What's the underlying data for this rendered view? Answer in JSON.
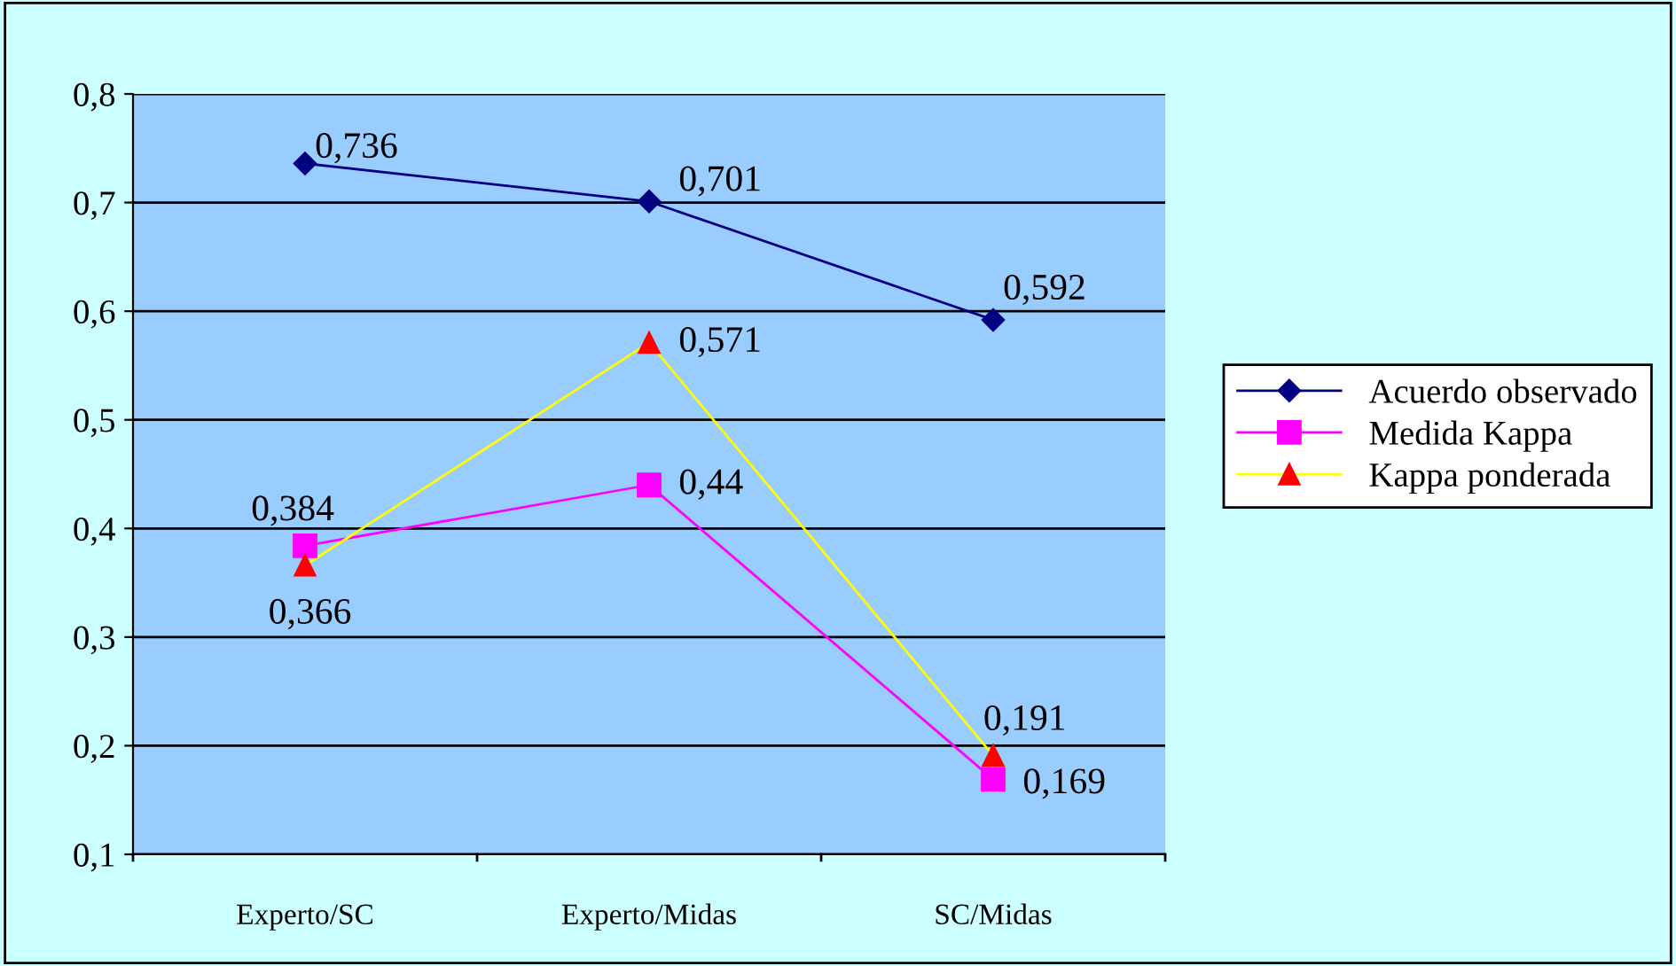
{
  "chart_data": {
    "type": "line",
    "categories": [
      "Experto/SC",
      "Experto/Midas",
      "SC/Midas"
    ],
    "series": [
      {
        "name": "Acuerdo observado",
        "color": "#000080",
        "marker": "diamond",
        "values": [
          0.736,
          0.701,
          0.592
        ]
      },
      {
        "name": "Medida Kappa",
        "color": "#ff00ff",
        "marker": "square",
        "values": [
          0.384,
          0.44,
          0.169
        ]
      },
      {
        "name": "Kappa ponderada",
        "color": "#ffff00",
        "colors": [
          "#ff0000",
          "#ff0000",
          "#ff0000"
        ],
        "marker": "triangle",
        "values": [
          0.366,
          0.571,
          0.191
        ]
      }
    ],
    "value_labels": [
      [
        "0,736",
        "0,701",
        "0,592"
      ],
      [
        "0,384",
        "0,44",
        "0,169"
      ],
      [
        "0,366",
        "0,571",
        "0,191"
      ]
    ],
    "ylim": [
      0.1,
      0.8
    ],
    "yticks": [
      {
        "value": 0.1,
        "label": "0,1"
      },
      {
        "value": 0.2,
        "label": "0,2"
      },
      {
        "value": 0.3,
        "label": "0,3"
      },
      {
        "value": 0.4,
        "label": "0,4"
      },
      {
        "value": 0.5,
        "label": "0,5"
      },
      {
        "value": 0.6,
        "label": "0,6"
      },
      {
        "value": 0.7,
        "label": "0,7"
      },
      {
        "value": 0.8,
        "label": "0,8"
      }
    ],
    "grid": "y",
    "legend": "right",
    "line_style": "solid"
  }
}
